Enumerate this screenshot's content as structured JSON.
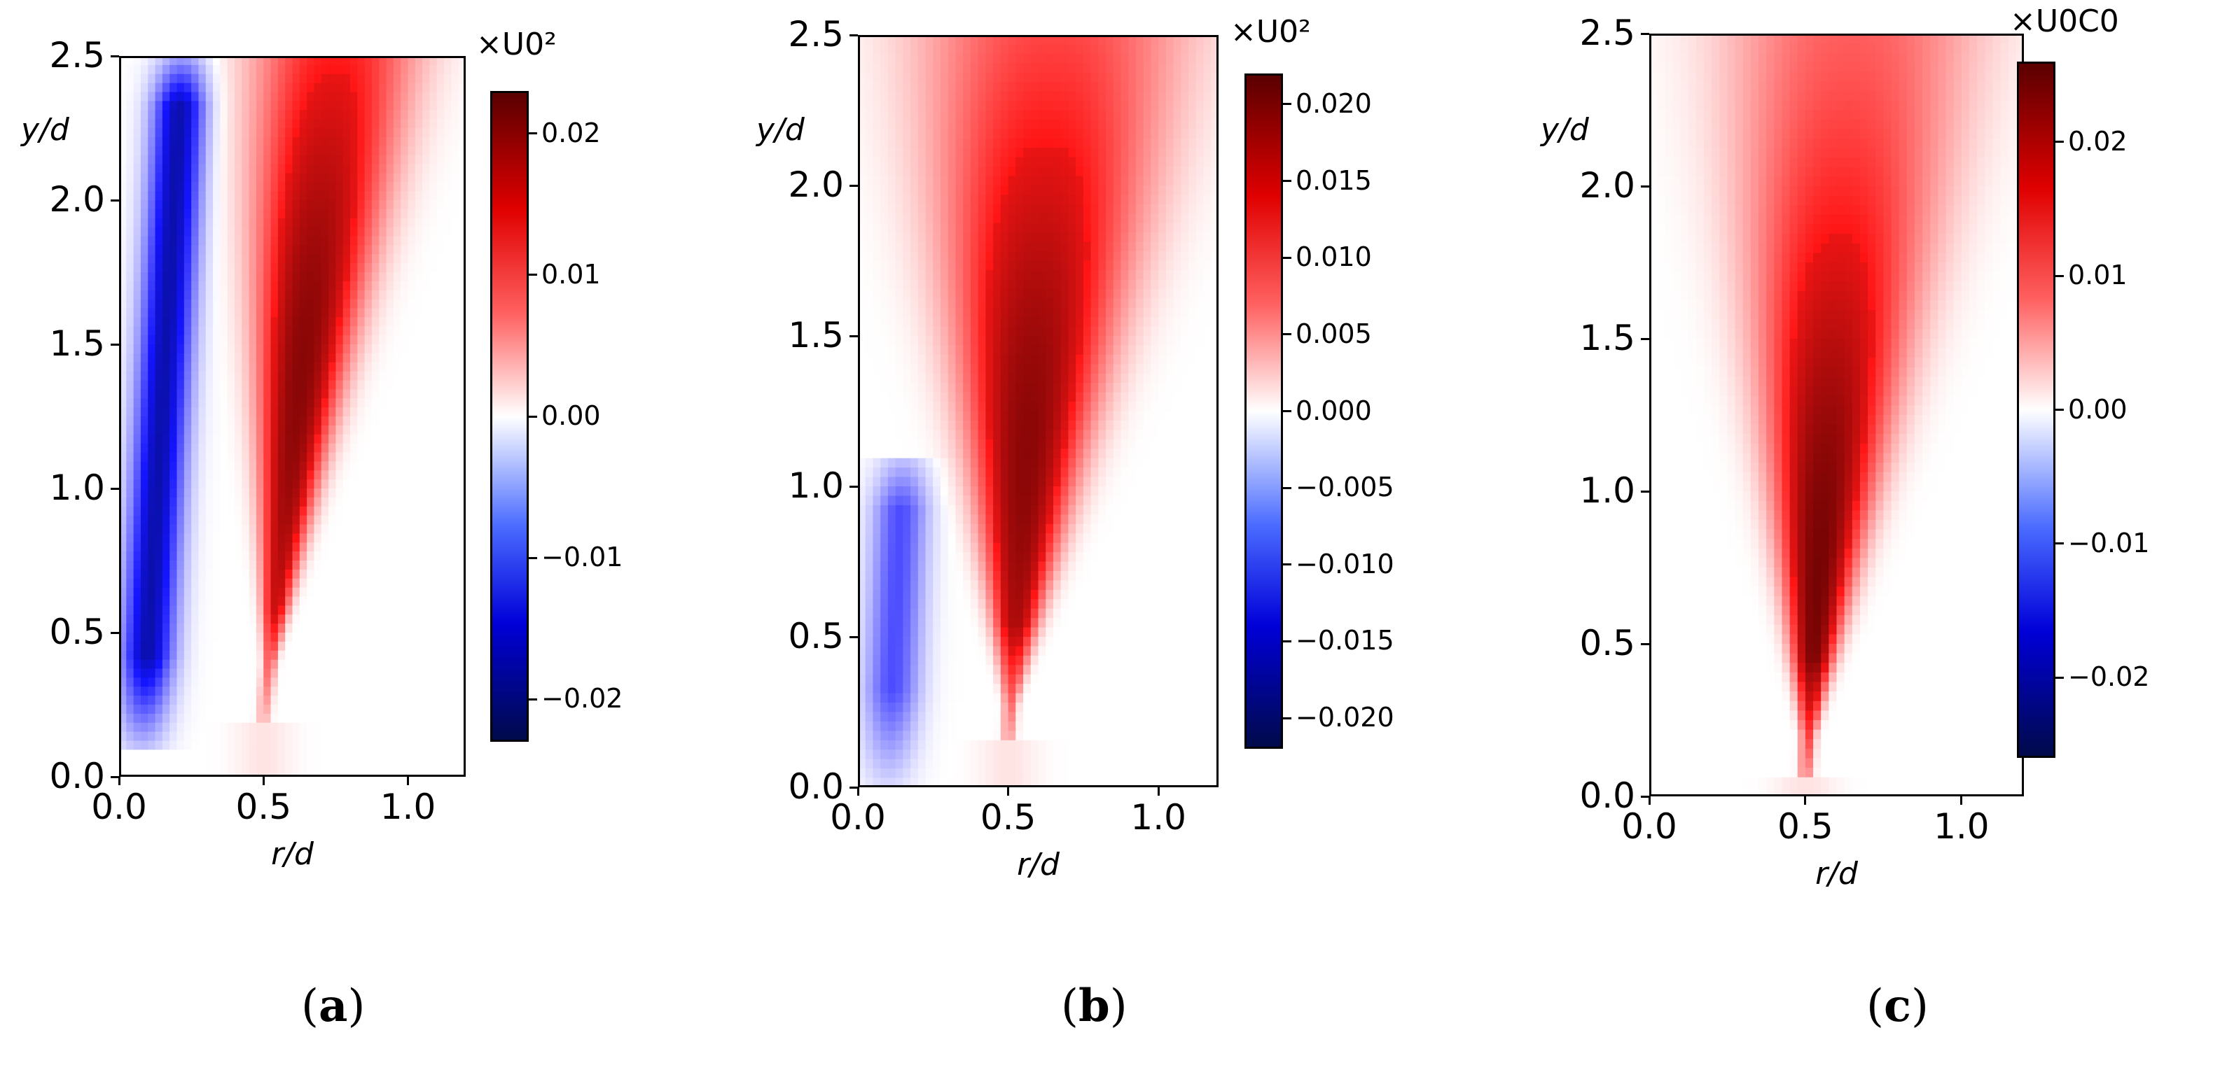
{
  "colors": {
    "neg_max": "#000a4a",
    "neg": "#0000d8",
    "zero": "#ffffff",
    "pos": "#e00000",
    "pos_max": "#5a0000"
  },
  "chart_data": [
    {
      "type": "heatmap",
      "panel_label": "a",
      "xlabel": "r/d",
      "ylabel": "y/d",
      "xlim": [
        0.0,
        1.2
      ],
      "ylim": [
        0.0,
        2.5
      ],
      "xticks": [
        "0.0",
        "0.5",
        "1.0"
      ],
      "yticks": [
        "0.0",
        "0.5",
        "1.0",
        "1.5",
        "2.0",
        "2.5"
      ],
      "colorbar_title": "×U0²",
      "colorbar_range": [
        -0.023,
        0.023
      ],
      "colorbar_ticks": [
        "0.02",
        "0.01",
        "0.00",
        "−0.01",
        "−0.02"
      ],
      "colorbar_tick_values": [
        0.02,
        0.01,
        0.0,
        -0.01,
        -0.02
      ],
      "features": [
        {
          "sign": "positive",
          "apex_r": 0.5,
          "apex_y": 0.2,
          "top_r_left": 0.4,
          "top_r_right": 1.1,
          "peak_r": 0.6,
          "peak_y": 1.4,
          "peak_value": 0.02
        },
        {
          "sign": "negative",
          "r_center_bottom": 0.08,
          "r_center_top": 0.22,
          "y_from": 0.1,
          "y_to": 2.5,
          "peak_value": -0.018
        }
      ]
    },
    {
      "type": "heatmap",
      "panel_label": "b",
      "xlabel": "r/d",
      "ylabel": "y/d",
      "xlim": [
        0.0,
        1.2
      ],
      "ylim": [
        0.0,
        2.5
      ],
      "xticks": [
        "0.0",
        "0.5",
        "1.0"
      ],
      "yticks": [
        "0.0",
        "0.5",
        "1.0",
        "1.5",
        "2.0",
        "2.5"
      ],
      "colorbar_title": "×U0²",
      "colorbar_range": [
        -0.022,
        0.022
      ],
      "colorbar_ticks": [
        "0.020",
        "0.015",
        "0.010",
        "0.005",
        "0.000",
        "−0.005",
        "−0.010",
        "−0.015",
        "−0.020"
      ],
      "colorbar_tick_values": [
        0.02,
        0.015,
        0.01,
        0.005,
        0.0,
        -0.005,
        -0.01,
        -0.015,
        -0.02
      ],
      "features": [
        {
          "sign": "positive",
          "apex_r": 0.5,
          "apex_y": 0.15,
          "top_r_left": 0.1,
          "top_r_right": 1.2,
          "peak_r": 0.5,
          "peak_y": 1.1,
          "peak_value": 0.019
        },
        {
          "sign": "negative",
          "r_center_bottom": 0.1,
          "r_center_top": 0.15,
          "y_from": 0.0,
          "y_to": 1.1,
          "peak_value": -0.01
        }
      ]
    },
    {
      "type": "heatmap",
      "panel_label": "c",
      "xlabel": "r/d",
      "ylabel": "y/d",
      "xlim": [
        0.0,
        1.2
      ],
      "ylim": [
        0.0,
        2.5
      ],
      "xticks": [
        "0.0",
        "0.5",
        "1.0"
      ],
      "yticks": [
        "0.0",
        "0.5",
        "1.0",
        "1.5",
        "2.0",
        "2.5"
      ],
      "colorbar_title": "×U0C0",
      "colorbar_range": [
        -0.026,
        0.026
      ],
      "colorbar_ticks": [
        "0.02",
        "0.01",
        "0.00",
        "−0.01",
        "−0.02"
      ],
      "colorbar_tick_values": [
        0.02,
        0.01,
        0.0,
        -0.01,
        -0.02
      ],
      "features": [
        {
          "sign": "positive",
          "apex_r": 0.5,
          "apex_y": 0.05,
          "top_r_left": 0.15,
          "top_r_right": 1.15,
          "peak_r": 0.5,
          "peak_y": 0.7,
          "peak_value": 0.024
        }
      ]
    }
  ]
}
